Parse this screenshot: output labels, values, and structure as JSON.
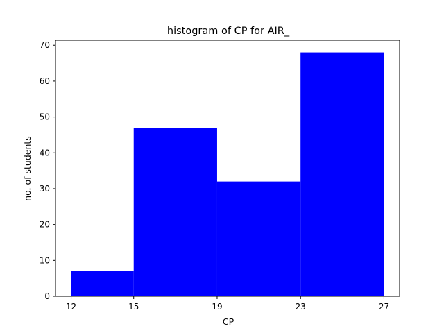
{
  "chart_data": {
    "type": "bar",
    "title": "histogram of CP for AIR_",
    "xlabel": "CP",
    "ylabel": "no. of students",
    "bins": [
      {
        "start": 12,
        "end": 15,
        "value": 7
      },
      {
        "start": 15,
        "end": 19,
        "value": 47
      },
      {
        "start": 19,
        "end": 23,
        "value": 32
      },
      {
        "start": 23,
        "end": 27,
        "value": 68
      }
    ],
    "xticks": [
      12,
      15,
      19,
      23,
      27
    ],
    "yticks": [
      0,
      10,
      20,
      30,
      40,
      50,
      60,
      70
    ],
    "xlim": [
      11.25,
      27.75
    ],
    "ylim": [
      0,
      71.4
    ],
    "bar_color": "#0000ff",
    "grid": false,
    "legend": "none"
  }
}
